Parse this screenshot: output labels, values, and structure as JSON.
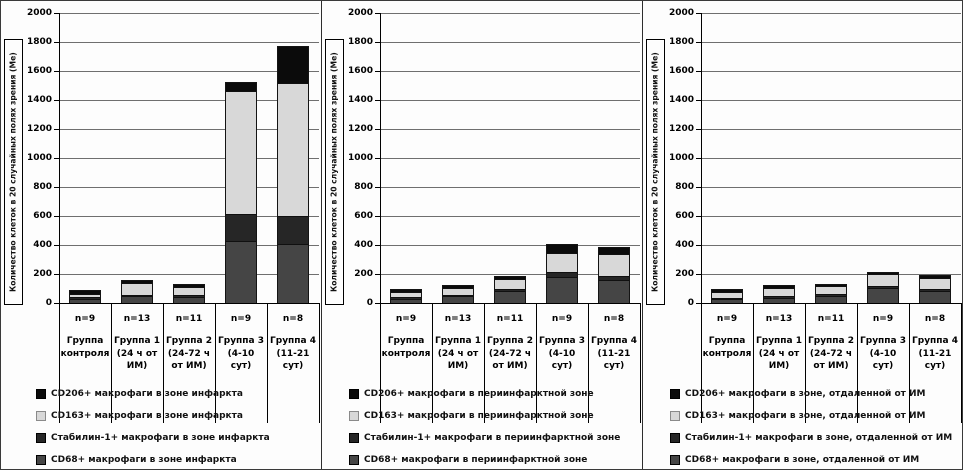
{
  "figure": {
    "description": "Three stacked bar charts of macrophage counts",
    "y_axis": {
      "title": "Количество клеток в 20 случайных полях зрения (Ме)",
      "min": 0,
      "max": 2000,
      "step": 200,
      "tick_labels": [
        "0",
        "200",
        "400",
        "600",
        "800",
        "1000",
        "1200",
        "1400",
        "1600",
        "1800",
        "2000"
      ]
    },
    "colors": {
      "cd68": "#454545",
      "stabilin": "#262626",
      "cd163": "#d8d8d8",
      "cd206": "#0b0b0b",
      "cd163_swatch_border": "#8a8a8a",
      "swatch_border": "#000000",
      "gridline": "#6f6f6f"
    }
  },
  "chart_data": [
    {
      "type": "bar",
      "stacked": true,
      "grid": true,
      "legend_position": "bottom",
      "ylabel": "Количество клеток в 20 случайных полях зрения (Ме)",
      "ylim": [
        0,
        2000
      ],
      "n_labels": [
        "n=9",
        "n=13",
        "n=11",
        "n=9",
        "n=8"
      ],
      "categories": [
        "Группа контроля",
        "Группа 1 (24 ч от ИМ)",
        "Группа 2 (24-72 ч от ИМ)",
        "Группа 3 (4-10 сут)",
        "Группа 4 (11-21 сут)"
      ],
      "series": [
        {
          "key": "cd68",
          "name": "CD68+ макрофаги в зоне инфаркта",
          "values": [
            30,
            45,
            40,
            425,
            410
          ]
        },
        {
          "key": "stabilin",
          "name": "Стабилин-1+  макрофаги в зоне инфаркта",
          "values": [
            10,
            12,
            12,
            190,
            190
          ]
        },
        {
          "key": "cd163",
          "name": "CD163+ макрофаги в зоне инфаркта",
          "values": [
            25,
            80,
            58,
            845,
            920
          ]
        },
        {
          "key": "cd206",
          "name": "CD206+ макрофаги в зоне инфаркта",
          "values": [
            20,
            18,
            15,
            60,
            245
          ]
        }
      ],
      "totals": [
        85,
        155,
        125,
        1520,
        1765
      ],
      "legend": [
        {
          "key": "cd206",
          "label": "CD206+ макрофаги в зоне инфаркта"
        },
        {
          "key": "cd163",
          "label": "CD163+ макрофаги в зоне инфаркта"
        },
        {
          "key": "stabilin",
          "label": "Стабилин-1+  макрофаги в зоне инфаркта"
        },
        {
          "key": "cd68",
          "label": "CD68+  макрофаги  в зоне инфаркта"
        }
      ]
    },
    {
      "type": "bar",
      "stacked": true,
      "grid": true,
      "legend_position": "bottom",
      "ylabel": "Количество клеток в 20 случайных полях зрения (Ме)",
      "ylim": [
        0,
        2000
      ],
      "n_labels": [
        "n=9",
        "n=13",
        "n=11",
        "n=9",
        "n=8"
      ],
      "categories": [
        "Группа контроля",
        "Группа 1 (24 ч от ИМ)",
        "Группа 2 (24-72 ч от ИМ)",
        "Группа 3 (4-10 сут)",
        "Группа 4 (11-21 сут)"
      ],
      "series": [
        {
          "key": "cd68",
          "name": "CD68+ макрофаги в периинфарктной зоне",
          "values": [
            30,
            45,
            80,
            180,
            160
          ]
        },
        {
          "key": "stabilin",
          "name": "Стабилин-1+ макрофаги в периинфарктной зоне",
          "values": [
            8,
            10,
            13,
            30,
            25
          ]
        },
        {
          "key": "cd163",
          "name": "CD163+ макрофаги в периинфарктной зоне",
          "values": [
            40,
            50,
            75,
            132,
            150
          ]
        },
        {
          "key": "cd206",
          "name": "CD206+ макрофаги в периинфарктной зоне",
          "values": [
            15,
            13,
            12,
            60,
            45
          ]
        }
      ],
      "totals": [
        93,
        118,
        180,
        402,
        380
      ],
      "legend": [
        {
          "key": "cd206",
          "label": "CD206+ макрофаги в периинфарктной  зоне"
        },
        {
          "key": "cd163",
          "label": "CD163+ макрофаги в периинфарктной  зоне"
        },
        {
          "key": "stabilin",
          "label": "Стабилин-1+ макрофаги в периинфарктной  зоне"
        },
        {
          "key": "cd68",
          "label": "CD68+ макрофаги в периинфарктной  зоне"
        }
      ]
    },
    {
      "type": "bar",
      "stacked": true,
      "grid": true,
      "legend_position": "bottom",
      "ylabel": "Количество клеток в 20 случайных полях зрения (Ме)",
      "ylim": [
        0,
        2000
      ],
      "n_labels": [
        "n=9",
        "n=13",
        "n=11",
        "n=9",
        "n=8"
      ],
      "categories": [
        "Группа контроля",
        "Группа 1 (24 ч от ИМ)",
        "Группа 2 (24-72 ч от ИМ)",
        "Группа 3 (4-10 сут)",
        "Группа 4 (11-21 сут)"
      ],
      "series": [
        {
          "key": "cd68",
          "name": "CD68+ макрофаги в зоне, отдаленной от ИМ",
          "values": [
            30,
            38,
            50,
            105,
            85
          ]
        },
        {
          "key": "stabilin",
          "name": "Стабилин-1+ макрофаги в зоне, отдаленной от ИМ",
          "values": [
            8,
            8,
            10,
            15,
            15
          ]
        },
        {
          "key": "cd163",
          "name": "CD163+ макрофаги в зоне, отдаленной от ИМ",
          "values": [
            38,
            58,
            55,
            82,
            75
          ]
        },
        {
          "key": "cd206",
          "name": "CD206+ макрофаги в зоне, отдаленной от ИМ",
          "values": [
            14,
            12,
            10,
            8,
            15
          ]
        }
      ],
      "totals": [
        90,
        116,
        125,
        210,
        190
      ],
      "legend": [
        {
          "key": "cd206",
          "label": "CD206+ макрофаги в зоне, отдаленной  от ИМ"
        },
        {
          "key": "cd163",
          "label": "CD163+ макрофаги в зоне, отдаленной  от ИМ"
        },
        {
          "key": "stabilin",
          "label": "Стабилин-1+  макрофаги  в зоне, отдаленной  от ИМ"
        },
        {
          "key": "cd68",
          "label": "CD68+ макрофаги в зоне, отдаленной  от ИМ"
        }
      ]
    }
  ]
}
